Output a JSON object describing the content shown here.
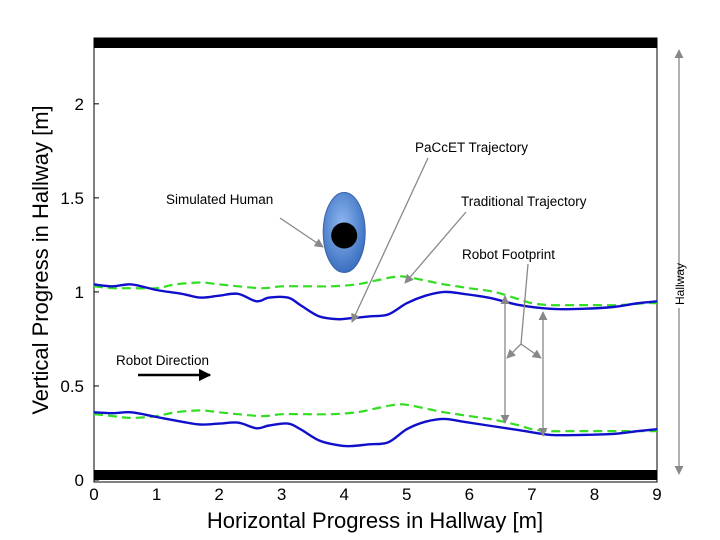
{
  "chart_data": {
    "type": "line",
    "xlabel": "Horizontal Progress in Hallway [m]",
    "ylabel": "Vertical Progress in Hallway [m]",
    "xlim": [
      0,
      9
    ],
    "ylim": [
      0,
      2.35
    ],
    "xticks": [
      "0",
      "1",
      "2",
      "3",
      "4",
      "5",
      "6",
      "7",
      "8",
      "9"
    ],
    "yticks": [
      "0",
      "0.5",
      "1",
      "1.5",
      "2"
    ],
    "ytick_values": [
      0,
      0.5,
      1,
      1.5,
      2
    ],
    "grid": false,
    "series": [
      {
        "name": "PaCcET Trajectory",
        "color": "#1010cc",
        "style": "solid",
        "x": [
          0,
          0.3,
          0.6,
          1.0,
          1.4,
          1.7,
          2.0,
          2.3,
          2.6,
          2.8,
          3.1,
          3.3,
          3.6,
          3.9,
          4.1,
          4.4,
          4.7,
          5.0,
          5.3,
          5.6,
          5.9,
          6.3,
          6.8,
          7.3,
          7.8,
          8.3,
          8.7,
          9.0
        ],
        "y_upper": [
          1.04,
          1.03,
          1.04,
          1.01,
          0.99,
          0.97,
          0.98,
          0.99,
          0.95,
          0.97,
          0.97,
          0.93,
          0.87,
          0.855,
          0.86,
          0.87,
          0.88,
          0.94,
          0.98,
          1.0,
          0.99,
          0.97,
          0.93,
          0.91,
          0.91,
          0.92,
          0.94,
          0.95
        ],
        "y_lower": [
          0.36,
          0.355,
          0.36,
          0.335,
          0.31,
          0.295,
          0.3,
          0.305,
          0.275,
          0.29,
          0.3,
          0.27,
          0.21,
          0.185,
          0.18,
          0.19,
          0.2,
          0.27,
          0.31,
          0.325,
          0.31,
          0.29,
          0.265,
          0.24,
          0.24,
          0.245,
          0.26,
          0.27
        ]
      },
      {
        "name": "Traditional Trajectory",
        "color": "#33dd22",
        "style": "dashed",
        "x": [
          0,
          0.3,
          0.6,
          1.0,
          1.3,
          1.7,
          2.0,
          2.3,
          2.7,
          3.0,
          3.4,
          3.8,
          4.2,
          4.5,
          4.8,
          5.0,
          5.3,
          5.6,
          6.0,
          6.4,
          6.8,
          7.0,
          7.3,
          7.7,
          8.0,
          8.4,
          8.8,
          9.0
        ],
        "y_upper": [
          1.03,
          1.02,
          1.02,
          1.02,
          1.04,
          1.05,
          1.04,
          1.03,
          1.02,
          1.03,
          1.03,
          1.03,
          1.04,
          1.06,
          1.08,
          1.08,
          1.06,
          1.04,
          1.02,
          1.0,
          0.96,
          0.94,
          0.93,
          0.93,
          0.93,
          0.93,
          0.94,
          0.94
        ],
        "y_lower": [
          0.35,
          0.34,
          0.33,
          0.34,
          0.36,
          0.37,
          0.36,
          0.35,
          0.34,
          0.35,
          0.35,
          0.35,
          0.36,
          0.38,
          0.4,
          0.4,
          0.38,
          0.36,
          0.34,
          0.32,
          0.29,
          0.27,
          0.26,
          0.26,
          0.26,
          0.26,
          0.26,
          0.26
        ]
      }
    ],
    "annotations": {
      "paccet": "PaCcET Trajectory",
      "traditional": "Traditional Trajectory",
      "human": "Simulated Human",
      "footprint": "Robot Footprint",
      "direction": "Robot Direction",
      "hallway": "Hallway"
    },
    "human_position": {
      "x": 4.0,
      "y": 1.3
    },
    "walls": [
      "top",
      "bottom"
    ],
    "colors": {
      "wall": "#000000",
      "human_fill": "#4f86d4",
      "human_head": "#000000",
      "arrow": "#888888"
    }
  }
}
